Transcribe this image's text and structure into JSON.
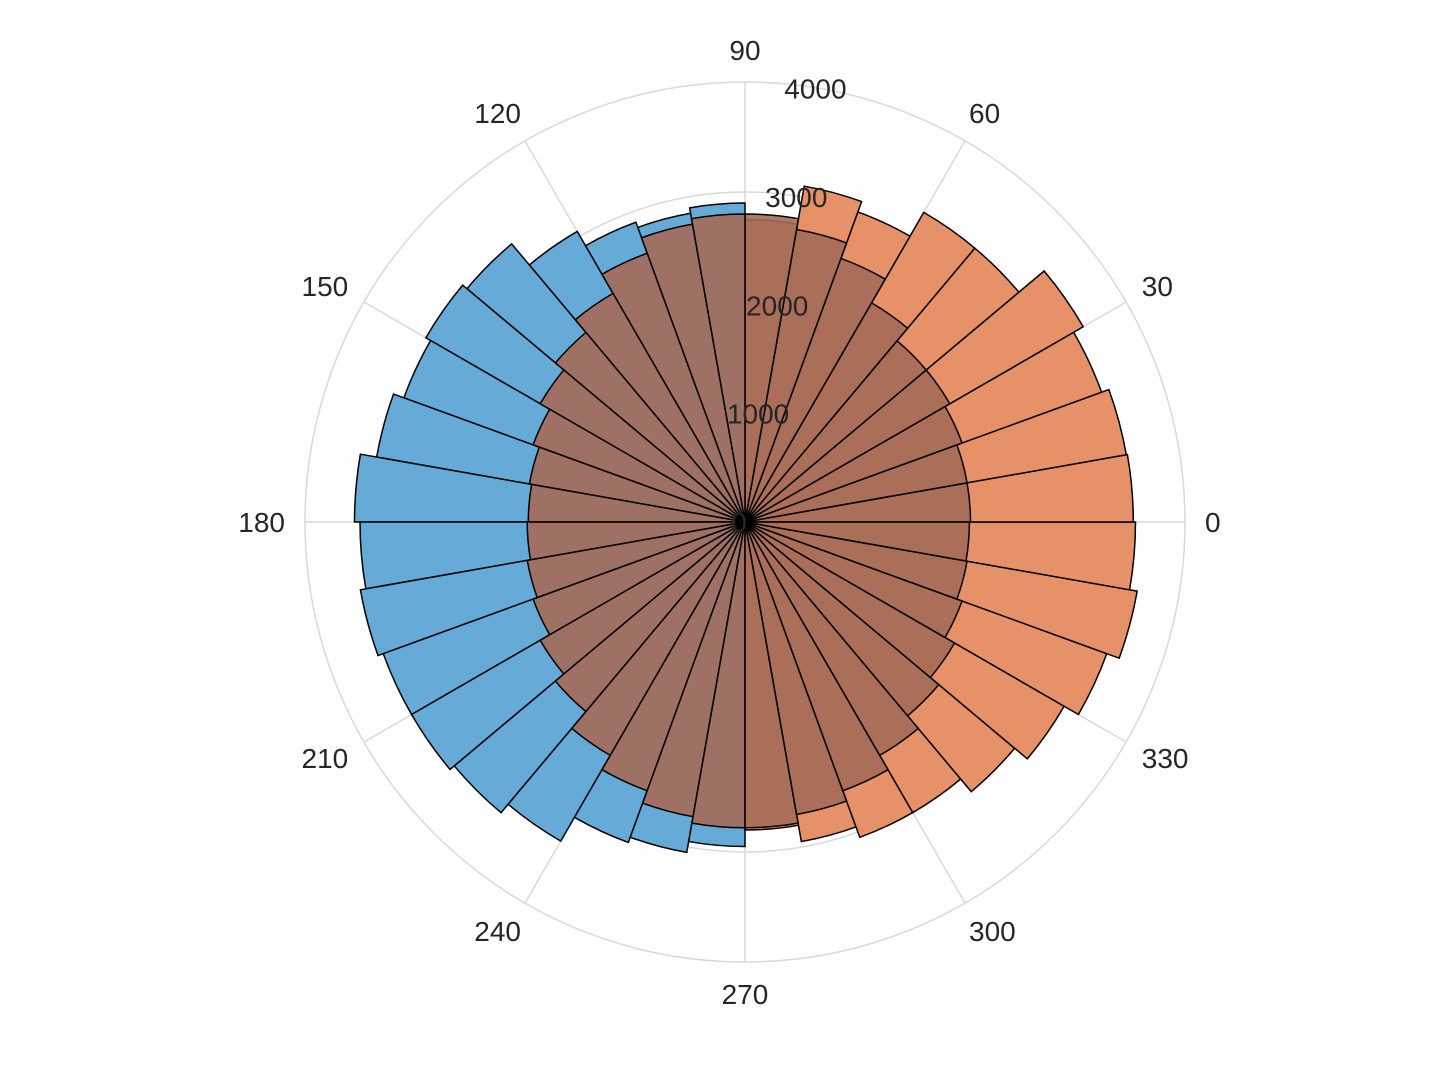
{
  "chart_data": {
    "type": "polar-histogram",
    "theta_ticks": [
      "0",
      "30",
      "60",
      "90",
      "120",
      "150",
      "180",
      "210",
      "240",
      "270",
      "300",
      "330"
    ],
    "r_ticks": [
      "0",
      "1000",
      "2000",
      "3000",
      "4000"
    ],
    "rlim": [
      0,
      4000
    ],
    "bin_width_deg": 10,
    "grid": true,
    "series": [
      {
        "color": "#66aad8",
        "opacity": 1.0,
        "bins": [
          {
            "center": 95,
            "value": 2900
          },
          {
            "center": 105,
            "value": 2850
          },
          {
            "center": 115,
            "value": 2900
          },
          {
            "center": 125,
            "value": 3050
          },
          {
            "center": 135,
            "value": 3300
          },
          {
            "center": 145,
            "value": 3350
          },
          {
            "center": 155,
            "value": 3300
          },
          {
            "center": 165,
            "value": 3400
          },
          {
            "center": 175,
            "value": 3550
          },
          {
            "center": 185,
            "value": 3500
          },
          {
            "center": 195,
            "value": 3550
          },
          {
            "center": 205,
            "value": 3500
          },
          {
            "center": 215,
            "value": 3500
          },
          {
            "center": 225,
            "value": 3450
          },
          {
            "center": 235,
            "value": 3350
          },
          {
            "center": 245,
            "value": 3100
          },
          {
            "center": 255,
            "value": 3050
          },
          {
            "center": 265,
            "value": 2950
          }
        ]
      },
      {
        "color": "#e79168",
        "opacity": 1.0,
        "bins": [
          {
            "center": 275,
            "value": 2800
          },
          {
            "center": 285,
            "value": 2950
          },
          {
            "center": 295,
            "value": 3050
          },
          {
            "center": 305,
            "value": 3050
          },
          {
            "center": 315,
            "value": 3200
          },
          {
            "center": 325,
            "value": 3350
          },
          {
            "center": 335,
            "value": 3500
          },
          {
            "center": 345,
            "value": 3620
          },
          {
            "center": 355,
            "value": 3550
          },
          {
            "center": 5,
            "value": 3530
          },
          {
            "center": 15,
            "value": 3520
          },
          {
            "center": 25,
            "value": 3450
          },
          {
            "center": 35,
            "value": 3550
          },
          {
            "center": 45,
            "value": 3250
          },
          {
            "center": 55,
            "value": 3250
          },
          {
            "center": 65,
            "value": 3000
          },
          {
            "center": 75,
            "value": 3100
          },
          {
            "center": 85,
            "value": 2750
          }
        ]
      },
      {
        "color": "#a46a58",
        "opacity": 0.9,
        "bins": [
          {
            "center": 5,
            "value": 2050
          },
          {
            "center": 15,
            "value": 2050
          },
          {
            "center": 25,
            "value": 2100
          },
          {
            "center": 35,
            "value": 2150
          },
          {
            "center": 45,
            "value": 2150
          },
          {
            "center": 55,
            "value": 2300
          },
          {
            "center": 65,
            "value": 2550
          },
          {
            "center": 75,
            "value": 2700
          },
          {
            "center": 85,
            "value": 2800
          },
          {
            "center": 95,
            "value": 2800
          },
          {
            "center": 105,
            "value": 2750
          },
          {
            "center": 115,
            "value": 2600
          },
          {
            "center": 125,
            "value": 2400
          },
          {
            "center": 135,
            "value": 2250
          },
          {
            "center": 145,
            "value": 2150
          },
          {
            "center": 155,
            "value": 2050
          },
          {
            "center": 165,
            "value": 1990
          },
          {
            "center": 175,
            "value": 1970
          },
          {
            "center": 185,
            "value": 1980
          },
          {
            "center": 195,
            "value": 2010
          },
          {
            "center": 205,
            "value": 2050
          },
          {
            "center": 215,
            "value": 2150
          },
          {
            "center": 225,
            "value": 2250
          },
          {
            "center": 235,
            "value": 2450
          },
          {
            "center": 245,
            "value": 2600
          },
          {
            "center": 255,
            "value": 2720
          },
          {
            "center": 265,
            "value": 2780
          },
          {
            "center": 275,
            "value": 2780
          },
          {
            "center": 285,
            "value": 2700
          },
          {
            "center": 295,
            "value": 2600
          },
          {
            "center": 305,
            "value": 2450
          },
          {
            "center": 315,
            "value": 2300
          },
          {
            "center": 325,
            "value": 2200
          },
          {
            "center": 335,
            "value": 2100
          },
          {
            "center": 345,
            "value": 2050
          },
          {
            "center": 355,
            "value": 2040
          }
        ]
      }
    ]
  }
}
